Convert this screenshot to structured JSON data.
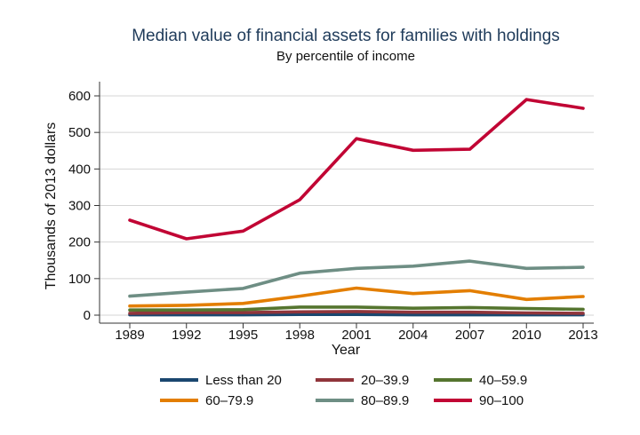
{
  "chart_data": {
    "type": "line",
    "title": "Median value of financial assets for families with holdings",
    "subtitle": "By percentile of income",
    "xlabel": "Year",
    "ylabel": "Thousands of 2013 dollars",
    "x": [
      "1989",
      "1992",
      "1995",
      "1998",
      "2001",
      "2004",
      "2007",
      "2010",
      "2013"
    ],
    "yticks": [
      0,
      100,
      200,
      300,
      400,
      500,
      600
    ],
    "ylim": [
      0,
      600
    ],
    "grid": "horizontal",
    "legend_position": "bottom",
    "series": [
      {
        "name": "Less than 20",
        "color": "#1a476f",
        "values": [
          1,
          1,
          1,
          2,
          2,
          1,
          1,
          1,
          1
        ]
      },
      {
        "name": "20–39.9",
        "color": "#90353b",
        "values": [
          5,
          7,
          7,
          9,
          10,
          8,
          8,
          6,
          5
        ]
      },
      {
        "name": "40–59.9",
        "color": "#55752f",
        "values": [
          14,
          14,
          15,
          22,
          22,
          19,
          21,
          18,
          16
        ]
      },
      {
        "name": "60–79.9",
        "color": "#e37e00",
        "values": [
          25,
          27,
          32,
          52,
          74,
          59,
          67,
          43,
          51
        ]
      },
      {
        "name": "80–89.9",
        "color": "#6e8e84",
        "values": [
          52,
          63,
          73,
          115,
          128,
          134,
          148,
          128,
          131
        ]
      },
      {
        "name": "90–100",
        "color": "#c10534",
        "values": [
          260,
          209,
          230,
          316,
          483,
          451,
          454,
          590,
          566
        ]
      }
    ]
  }
}
